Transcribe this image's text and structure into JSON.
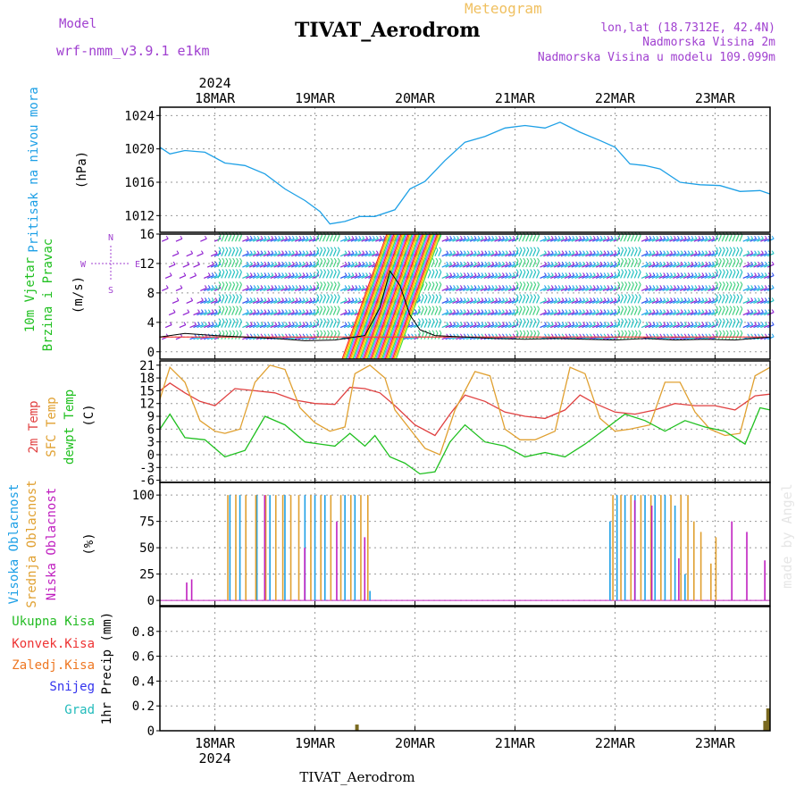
{
  "header": {
    "model_label": "Model",
    "model_name": "wrf-nmm_v3.9.1  e1km",
    "product": "Meteogram",
    "title": "TIVAT_Aerodrom",
    "coords": "lon,lat (18.7312E, 42.4N)",
    "elev": "Nadmorska Visina 2m",
    "elev_model": "Nadmorska Visina u modelu 109.099m"
  },
  "footer": {
    "station": "TIVAT_Aerodrom",
    "watermark": "made by Angel"
  },
  "time_axis": {
    "year": "2024",
    "dates": [
      "18MAR",
      "19MAR",
      "20MAR",
      "21MAR",
      "22MAR",
      "23MAR"
    ],
    "range_days": [
      -0.55,
      5.55
    ]
  },
  "colors": {
    "pressure": "#1ea0e6",
    "temp2m": "#e04040",
    "sfc": "#e0a030",
    "dewpt": "#20c020",
    "high_cloud": "#1ea0e6",
    "mid_cloud": "#e0a030",
    "low_cloud": "#c020c0",
    "precip_total": "#22bb22",
    "precip_conv": "#ee3333",
    "precip_frz": "#ee7722",
    "precip_snow": "#3333ee",
    "precip_hail": "#22bbbb",
    "gust": "#000000"
  },
  "panels": {
    "pressure": {
      "label": "Pritisak na nivou mora",
      "unit": "(hPa)"
    },
    "wind": {
      "label1": "10m Vjetar",
      "label2": "Brzina i Pravac",
      "unit": "(m/s)",
      "compass": {
        "n": "N",
        "s": "S",
        "e": "E",
        "w": "W"
      }
    },
    "temp": {
      "label_t2": "2m Temp",
      "label_sfc": "SFC Temp",
      "label_dew": "dewpt Temp",
      "unit": "(C)"
    },
    "cloud": {
      "label_high": "Visoka Oblacnost",
      "label_mid": "Srednja Oblacnost",
      "label_low": "Niska Oblacnost",
      "unit": "(%)"
    },
    "precip": {
      "label_total": "Ukupna Kisa",
      "label_conv": "Konvek.Kisa",
      "label_frz": "Zaledj.Kisa",
      "label_snow": "Snijeg",
      "label_hail": "Grad",
      "axis_label": "1hr Precip (mm)"
    }
  },
  "chart_data": [
    {
      "type": "line",
      "panel": "pressure",
      "ylim": [
        1010,
        1025
      ],
      "yticks": [
        "1012",
        "1016",
        "1020",
        "1024"
      ],
      "series": [
        {
          "name": "Pritisak na nivou mora",
          "x": [
            -0.55,
            -0.45,
            -0.3,
            -0.1,
            0.1,
            0.3,
            0.5,
            0.7,
            0.9,
            1.05,
            1.15,
            1.3,
            1.45,
            1.6,
            1.8,
            1.95,
            2.1,
            2.3,
            2.5,
            2.7,
            2.9,
            3.1,
            3.3,
            3.45,
            3.65,
            3.85,
            4.0,
            4.15,
            4.3,
            4.45,
            4.65,
            4.85,
            5.05,
            5.25,
            5.45,
            5.55
          ],
          "y": [
            1020.2,
            1019.4,
            1019.8,
            1019.6,
            1018.3,
            1018.0,
            1017.0,
            1015.2,
            1013.8,
            1012.5,
            1011.0,
            1011.3,
            1011.9,
            1011.9,
            1012.7,
            1015.2,
            1016.1,
            1018.6,
            1020.8,
            1021.5,
            1022.5,
            1022.8,
            1022.5,
            1023.2,
            1022.0,
            1021.0,
            1020.2,
            1018.2,
            1018.0,
            1017.6,
            1016.0,
            1015.7,
            1015.6,
            1014.9,
            1015.0,
            1014.6
          ]
        }
      ]
    },
    {
      "type": "line",
      "panel": "wind",
      "ylim": [
        -1,
        16
      ],
      "yticks": [
        "0",
        "4",
        "8",
        "12",
        "16"
      ],
      "series": [
        {
          "name": "10m Vjetar",
          "x": [
            -0.55,
            -0.3,
            0,
            0.3,
            0.6,
            0.9,
            1.2,
            1.5,
            1.65,
            1.75,
            1.85,
            1.95,
            2.05,
            2.2,
            2.5,
            2.8,
            3.1,
            3.4,
            3.7,
            4.0,
            4.3,
            4.6,
            4.9,
            5.2,
            5.55
          ],
          "y": [
            2,
            2.5,
            2.2,
            2.0,
            1.8,
            1.5,
            1.6,
            2.2,
            6,
            11,
            9,
            5,
            3,
            2.2,
            2.0,
            1.8,
            1.7,
            1.8,
            1.7,
            1.6,
            1.8,
            1.6,
            1.7,
            1.6,
            2.0
          ]
        }
      ]
    },
    {
      "type": "line",
      "panel": "temp",
      "ylim": [
        -6.5,
        22
      ],
      "yticks": [
        "-6",
        "-3",
        "0",
        "3",
        "6",
        "9",
        "12",
        "15",
        "18",
        "21"
      ],
      "series": [
        {
          "name": "2m Temp",
          "x": [
            -0.55,
            -0.45,
            -0.3,
            -0.15,
            0,
            0.2,
            0.4,
            0.6,
            0.8,
            1.0,
            1.2,
            1.35,
            1.5,
            1.65,
            1.8,
            2.0,
            2.2,
            2.35,
            2.5,
            2.7,
            2.9,
            3.1,
            3.3,
            3.5,
            3.65,
            3.8,
            4.0,
            4.2,
            4.4,
            4.6,
            4.8,
            5.0,
            5.2,
            5.4,
            5.55
          ],
          "y": [
            15,
            16.8,
            14.5,
            12.5,
            11.5,
            15.5,
            15,
            14.5,
            12.8,
            12,
            11.8,
            15.8,
            15.5,
            14.5,
            11.5,
            7,
            4.5,
            9.5,
            14,
            12.5,
            10,
            9,
            8.5,
            10.5,
            14,
            12,
            10,
            9.5,
            10.5,
            12,
            11.5,
            11.5,
            10.5,
            13.8,
            14.2
          ]
        },
        {
          "name": "SFC Temp",
          "x": [
            -0.55,
            -0.45,
            -0.3,
            -0.15,
            0,
            0.1,
            0.25,
            0.4,
            0.55,
            0.7,
            0.85,
            1.0,
            1.15,
            1.3,
            1.4,
            1.55,
            1.7,
            1.8,
            1.95,
            2.1,
            2.25,
            2.4,
            2.6,
            2.75,
            2.9,
            3.05,
            3.2,
            3.4,
            3.55,
            3.7,
            3.85,
            4.0,
            4.15,
            4.35,
            4.5,
            4.65,
            4.8,
            4.95,
            5.1,
            5.25,
            5.4,
            5.55
          ],
          "y": [
            13,
            20.5,
            17,
            8,
            5.5,
            5,
            6,
            17,
            21,
            20,
            11,
            7.5,
            5.5,
            6.5,
            19,
            21,
            18,
            10.5,
            6,
            1.5,
            0,
            10.5,
            19.5,
            18.5,
            6,
            3.5,
            3.5,
            5.5,
            20.5,
            19,
            8.5,
            5.5,
            6,
            7,
            17,
            17,
            10,
            6,
            4.5,
            5,
            18.5,
            20.5
          ]
        },
        {
          "name": "dewpt Temp",
          "x": [
            -0.55,
            -0.45,
            -0.3,
            -0.1,
            0.1,
            0.3,
            0.5,
            0.7,
            0.9,
            1.05,
            1.2,
            1.35,
            1.5,
            1.6,
            1.75,
            1.9,
            2.05,
            2.2,
            2.35,
            2.5,
            2.7,
            2.9,
            3.1,
            3.3,
            3.5,
            3.7,
            3.9,
            4.1,
            4.3,
            4.5,
            4.7,
            4.9,
            5.1,
            5.3,
            5.45,
            5.55
          ],
          "y": [
            6,
            9.5,
            4,
            3.5,
            -0.5,
            1,
            9,
            7,
            3,
            2.5,
            2,
            5,
            2,
            4.5,
            -0.5,
            -2,
            -4.5,
            -4,
            3,
            7,
            3,
            2,
            -0.5,
            0.5,
            -0.5,
            2.5,
            6,
            9.5,
            8,
            5.5,
            8,
            6.5,
            5.5,
            2.5,
            11,
            10.5
          ]
        }
      ]
    },
    {
      "type": "bar",
      "panel": "cloud",
      "ylim": [
        -5,
        112
      ],
      "yticks": [
        "0",
        "25",
        "50",
        "75",
        "100"
      ],
      "series": [
        {
          "name": "Visoka Oblacnost",
          "bars": [
            [
              0.15,
              100
            ],
            [
              0.25,
              100
            ],
            [
              0.42,
              100
            ],
            [
              0.55,
              100
            ],
            [
              0.7,
              100
            ],
            [
              0.9,
              100
            ],
            [
              1.0,
              100
            ],
            [
              1.1,
              100
            ],
            [
              1.3,
              100
            ],
            [
              1.4,
              100
            ],
            [
              1.55,
              9
            ],
            [
              3.95,
              75
            ],
            [
              4.02,
              100
            ],
            [
              4.1,
              100
            ],
            [
              4.2,
              100
            ],
            [
              4.3,
              100
            ],
            [
              4.4,
              100
            ],
            [
              4.5,
              100
            ],
            [
              4.6,
              90
            ],
            [
              4.7,
              25
            ]
          ]
        },
        {
          "name": "Srednja Oblacnost",
          "bars": [
            [
              0.12,
              100
            ],
            [
              0.2,
              100
            ],
            [
              0.3,
              100
            ],
            [
              0.4,
              100
            ],
            [
              0.5,
              100
            ],
            [
              0.6,
              100
            ],
            [
              0.67,
              100
            ],
            [
              0.75,
              100
            ],
            [
              0.83,
              100
            ],
            [
              0.95,
              100
            ],
            [
              1.05,
              100
            ],
            [
              1.15,
              100
            ],
            [
              1.25,
              100
            ],
            [
              1.35,
              100
            ],
            [
              1.45,
              100
            ],
            [
              1.52,
              100
            ],
            [
              3.97,
              100
            ],
            [
              4.05,
              100
            ],
            [
              4.15,
              100
            ],
            [
              4.25,
              100
            ],
            [
              4.35,
              100
            ],
            [
              4.45,
              100
            ],
            [
              4.55,
              100
            ],
            [
              4.65,
              100
            ],
            [
              4.72,
              100
            ],
            [
              4.78,
              75
            ],
            [
              4.85,
              65
            ],
            [
              4.95,
              35
            ],
            [
              5.0,
              60
            ]
          ]
        },
        {
          "name": "Niska Oblacnost",
          "bars": [
            [
              -0.3,
              17
            ],
            [
              -0.25,
              20
            ],
            [
              0.48,
              100
            ],
            [
              0.88,
              50
            ],
            [
              1.2,
              75
            ],
            [
              1.48,
              60
            ],
            [
              4.18,
              95
            ],
            [
              4.35,
              90
            ],
            [
              4.62,
              40
            ],
            [
              5.15,
              75
            ],
            [
              5.3,
              65
            ],
            [
              5.48,
              38
            ]
          ]
        }
      ]
    },
    {
      "type": "bar",
      "panel": "precip",
      "ylim": [
        0,
        1.0
      ],
      "yticks": [
        "0",
        "0.2",
        "0.4",
        "0.6",
        "0.8"
      ],
      "series": [
        {
          "name": "Ukupna Kisa",
          "bars": [
            [
              1.42,
              0.05
            ],
            [
              5.5,
              0.08
            ],
            [
              5.53,
              0.18
            ]
          ]
        }
      ]
    }
  ]
}
